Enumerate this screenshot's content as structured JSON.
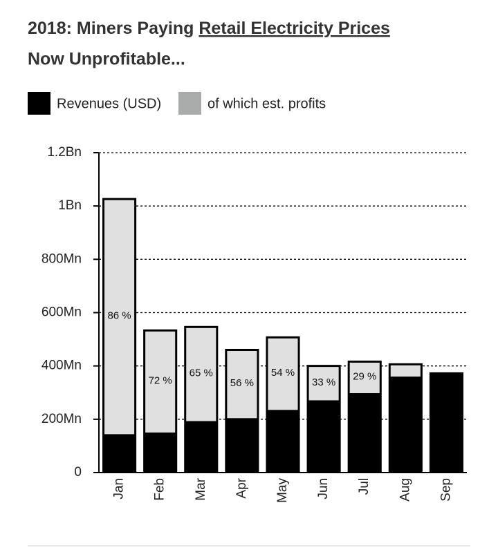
{
  "chart_data": {
    "type": "bar",
    "title": [
      "2018: Miners Paying",
      "Retail Electricity Prices",
      "Now Unprofitable..."
    ],
    "categories": [
      "Jan",
      "Feb",
      "Mar",
      "Apr",
      "May",
      "Jun",
      "Jul",
      "Aug",
      "Sep"
    ],
    "series": [
      {
        "name": "Revenues (USD)",
        "color": "#000000",
        "values": [
          1030,
          537,
          550,
          464,
          511,
          404,
          420,
          410,
          376
        ]
      },
      {
        "name": "of which est. profits",
        "color": "#e0e0e0",
        "legend_color": "#a9abab",
        "values": [
          886,
          387,
          357,
          260,
          276,
          133,
          122,
          50,
          null
        ]
      }
    ],
    "shares": [
      86,
      72,
      65,
      56,
      54,
      33,
      29,
      null,
      null
    ],
    "share_labels": [
      "86 %",
      "72 %",
      "65 %",
      "56 %",
      "54 %",
      "33 %",
      "29 %",
      null,
      null
    ],
    "ylim": [
      0,
      1200
    ],
    "yticks": [
      0,
      {
        "value": 200,
        "label": "200Mn"
      },
      {
        "value": 400,
        "label": "400Mn"
      },
      {
        "value": 600,
        "label": "600Mn"
      },
      {
        "value": 800,
        "label": "800Mn"
      },
      {
        "value": 1000,
        "label": "1Bn"
      },
      {
        "value": 1200,
        "label": "1.2Bn"
      }
    ],
    "grid": true
  }
}
